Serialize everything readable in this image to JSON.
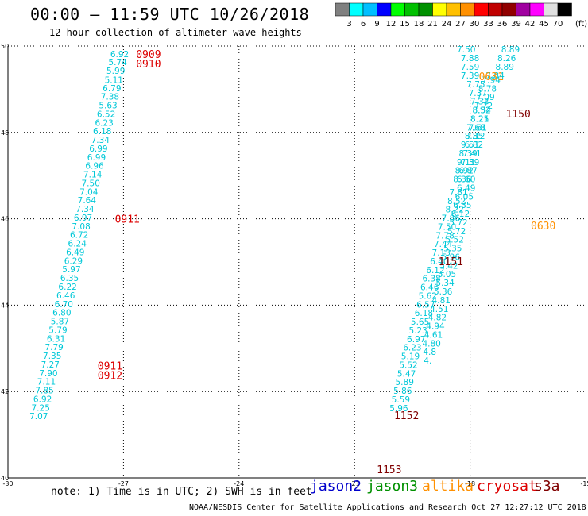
{
  "header": {
    "title": "00:00 – 11:59 UTC 10/26/2018",
    "subtitle": "12 hour collection of altimeter wave heights"
  },
  "colorbar": {
    "colors": [
      "#808080",
      "#00ffff",
      "#00bfff",
      "#0000ff",
      "#00ff00",
      "#00c000",
      "#009000",
      "#ffff00",
      "#ffc000",
      "#ff9000",
      "#ff0000",
      "#c00000",
      "#900000",
      "#a000a0",
      "#ff00ff",
      "#e0e0e0",
      "#000000"
    ],
    "labels": [
      "3",
      "6",
      "9",
      "12",
      "15",
      "18",
      "21",
      "24",
      "27",
      "30",
      "33",
      "36",
      "39",
      "42",
      "45",
      "70",
      "(ft)"
    ]
  },
  "footer": {
    "note": "note: 1) Time is in UTC; 2) SWH is in feet",
    "credit": "NOAA/NESDIS Center for Satellite Applications and Research   Oct 27 12:27:12 UTC 2018",
    "satellites": [
      {
        "name": "jason2",
        "color": "#0000cc"
      },
      {
        "name": "jason3",
        "color": "#009000"
      },
      {
        "name": "altika",
        "color": "#ff9000"
      },
      {
        "name": "cryosat",
        "color": "#dd0000"
      },
      {
        "name": "s3a",
        "color": "#800000"
      }
    ]
  },
  "chart_data": {
    "type": "scatter",
    "xlim": [
      -30,
      -15
    ],
    "ylim": [
      40,
      50
    ],
    "xticks": [
      -30,
      -27,
      -24,
      -21,
      -18,
      -15
    ],
    "yticks": [
      40,
      42,
      44,
      46,
      48,
      50
    ],
    "grid": true,
    "series": [
      {
        "name": "cryosat",
        "color": "#00c8d8",
        "points": [
          [
            -27.1,
            49.82,
            "6.92"
          ],
          [
            -27.15,
            49.63,
            "5.74"
          ],
          [
            -27.2,
            49.43,
            "5.99"
          ],
          [
            -27.25,
            49.22,
            "5.11"
          ],
          [
            -27.3,
            49.03,
            "6.79"
          ],
          [
            -27.35,
            48.83,
            "7.38"
          ],
          [
            -27.4,
            48.63,
            "5.63"
          ],
          [
            -27.45,
            48.43,
            "6.52"
          ],
          [
            -27.5,
            48.23,
            "6.23"
          ],
          [
            -27.55,
            48.03,
            "6.18"
          ],
          [
            -27.6,
            47.83,
            "7.34"
          ],
          [
            -27.65,
            47.63,
            "6.99"
          ],
          [
            -27.7,
            47.43,
            "6.99"
          ],
          [
            -27.75,
            47.23,
            "6.96"
          ],
          [
            -27.8,
            47.03,
            "7.14"
          ],
          [
            -27.85,
            46.83,
            "7.50"
          ],
          [
            -27.9,
            46.63,
            "7.04"
          ],
          [
            -27.95,
            46.43,
            "7.64"
          ],
          [
            -28.0,
            46.23,
            "7.34"
          ],
          [
            -28.05,
            46.03,
            "6.97"
          ],
          [
            -28.1,
            45.83,
            "7.08"
          ],
          [
            -28.15,
            45.63,
            "6.72"
          ],
          [
            -28.2,
            45.43,
            "6.24"
          ],
          [
            -28.25,
            45.23,
            "6.49"
          ],
          [
            -28.3,
            45.03,
            "6.29"
          ],
          [
            -28.35,
            44.83,
            "5.97"
          ],
          [
            -28.4,
            44.63,
            "6.35"
          ],
          [
            -28.45,
            44.43,
            "6.22"
          ],
          [
            -28.5,
            44.23,
            "6.46"
          ],
          [
            -28.55,
            44.03,
            "6.70"
          ],
          [
            -28.6,
            43.83,
            "6.80"
          ],
          [
            -28.65,
            43.63,
            "5.87"
          ],
          [
            -28.7,
            43.43,
            "5.79"
          ],
          [
            -28.75,
            43.23,
            "6.31"
          ],
          [
            -28.8,
            43.03,
            "7.79"
          ],
          [
            -28.85,
            42.83,
            "7.35"
          ],
          [
            -28.9,
            42.63,
            "7.27"
          ],
          [
            -28.95,
            42.43,
            "7.90"
          ],
          [
            -29.0,
            42.23,
            "7.11"
          ],
          [
            -29.05,
            42.03,
            "7.85"
          ],
          [
            -29.1,
            41.83,
            "6.92"
          ],
          [
            -29.15,
            41.63,
            "7.25"
          ],
          [
            -29.2,
            41.43,
            "7.07"
          ]
        ]
      },
      {
        "name": "jason3",
        "color": "#00c8d8",
        "points": [
          [
            -18.1,
            49.93,
            "7.50"
          ],
          [
            -18.0,
            49.72,
            "7.88"
          ],
          [
            -18.0,
            49.52,
            "7.59"
          ],
          [
            -18.0,
            49.32,
            "7.39"
          ],
          [
            -17.85,
            49.12,
            "7.75"
          ],
          [
            -17.8,
            48.92,
            "7.37"
          ],
          [
            -17.75,
            48.72,
            "7.33"
          ],
          [
            -17.7,
            48.52,
            "8.34"
          ],
          [
            -17.75,
            48.32,
            "8.25"
          ],
          [
            -17.85,
            48.12,
            "7.68"
          ],
          [
            -17.9,
            47.92,
            "8.85"
          ],
          [
            -18.0,
            47.72,
            "9.51"
          ],
          [
            -18.05,
            47.52,
            "8.39"
          ],
          [
            -18.1,
            47.32,
            "9.11"
          ],
          [
            -18.15,
            47.12,
            "8.92"
          ],
          [
            -18.2,
            46.92,
            "8.36"
          ],
          [
            -18.3,
            46.62,
            "7.81"
          ],
          [
            -18.35,
            46.42,
            "8.52"
          ],
          [
            -18.4,
            46.22,
            "8.22"
          ],
          [
            -18.5,
            46.02,
            "7.86"
          ],
          [
            -18.6,
            45.82,
            "7.50"
          ],
          [
            -18.65,
            45.62,
            "7.78"
          ],
          [
            -18.7,
            45.42,
            "7.44"
          ],
          [
            -18.75,
            45.22,
            "7.13"
          ],
          [
            -18.8,
            45.02,
            "6.40"
          ],
          [
            -18.9,
            44.82,
            "6.12"
          ],
          [
            -19.0,
            44.62,
            "6.38"
          ],
          [
            -19.05,
            44.42,
            "6.46"
          ],
          [
            -19.1,
            44.22,
            "5.62"
          ],
          [
            -19.15,
            44.02,
            "6.57"
          ],
          [
            -19.2,
            43.82,
            "6.18"
          ],
          [
            -19.3,
            43.62,
            "5.65"
          ],
          [
            -19.35,
            43.42,
            "5.23"
          ],
          [
            -19.4,
            43.22,
            "6.97"
          ],
          [
            -19.5,
            43.02,
            "6.23"
          ],
          [
            -19.55,
            42.82,
            "5.19"
          ],
          [
            -19.6,
            42.62,
            "5.52"
          ],
          [
            -19.65,
            42.42,
            "5.47"
          ],
          [
            -19.7,
            42.22,
            "5.89"
          ],
          [
            -19.75,
            42.02,
            "5.86"
          ],
          [
            -19.8,
            41.82,
            "5.59"
          ],
          [
            -19.85,
            41.62,
            "5.96"
          ]
        ]
      },
      {
        "name": "altika",
        "color": "#00c8d8",
        "points": [
          [
            -16.95,
            49.93,
            "8.89"
          ],
          [
            -17.05,
            49.72,
            "8.26"
          ],
          [
            -17.1,
            49.52,
            "8.89"
          ],
          [
            -17.35,
            49.32,
            "7.84"
          ],
          [
            -17.45,
            49.22,
            "7.94"
          ],
          [
            -17.55,
            49.02,
            "8.78"
          ],
          [
            -17.6,
            48.82,
            "7.09"
          ],
          [
            -17.65,
            48.62,
            "7.72"
          ],
          [
            -17.7,
            48.52,
            "8.52"
          ],
          [
            -17.75,
            48.32,
            "8.21"
          ],
          [
            -17.8,
            48.12,
            "7.61"
          ],
          [
            -17.85,
            47.92,
            "7.12"
          ],
          [
            -17.9,
            47.72,
            "6.82"
          ],
          [
            -17.95,
            47.52,
            "7.41"
          ],
          [
            -18.0,
            47.32,
            "7.39"
          ],
          [
            -18.05,
            47.12,
            "6.87"
          ],
          [
            -18.1,
            46.92,
            "6.60"
          ],
          [
            -18.1,
            46.72,
            "6.49"
          ],
          [
            -18.15,
            46.52,
            "6.05"
          ],
          [
            -18.2,
            46.32,
            "6.35"
          ],
          [
            -18.25,
            46.12,
            "6.12"
          ],
          [
            -18.3,
            45.92,
            "5.72"
          ],
          [
            -18.35,
            45.72,
            "5.72"
          ],
          [
            -18.4,
            45.52,
            "5.52"
          ],
          [
            -18.45,
            45.32,
            "5.35"
          ],
          [
            -18.5,
            45.12,
            "5.96"
          ],
          [
            -18.55,
            44.92,
            "5.42"
          ],
          [
            -18.6,
            44.72,
            "5.05"
          ],
          [
            -18.65,
            44.52,
            "5.34"
          ],
          [
            -18.7,
            44.32,
            "5.36"
          ],
          [
            -18.75,
            44.12,
            "4.81"
          ],
          [
            -18.8,
            43.92,
            "4.51"
          ],
          [
            -18.85,
            43.72,
            "4.82"
          ],
          [
            -18.9,
            43.52,
            "4.94"
          ],
          [
            -18.95,
            43.32,
            "4.61"
          ],
          [
            -19.0,
            43.12,
            "4.80"
          ],
          [
            -19.05,
            42.92,
            "4.8"
          ],
          [
            -19.1,
            42.72,
            "4."
          ]
        ]
      }
    ],
    "time_labels": [
      {
        "text": "0909",
        "x": -26.35,
        "y": 49.82,
        "color": "#dd0000"
      },
      {
        "text": "0910",
        "x": -26.35,
        "y": 49.6,
        "color": "#dd0000"
      },
      {
        "text": "0911",
        "x": -26.9,
        "y": 46.0,
        "color": "#dd0000"
      },
      {
        "text": "0911",
        "x": -27.35,
        "y": 42.6,
        "color": "#dd0000"
      },
      {
        "text": "0912",
        "x": -27.35,
        "y": 42.38,
        "color": "#dd0000"
      },
      {
        "text": "0631",
        "x": -17.45,
        "y": 49.3,
        "color": "#ff9000"
      },
      {
        "text": "1150",
        "x": -16.75,
        "y": 48.44,
        "color": "#800000"
      },
      {
        "text": "0630",
        "x": -16.1,
        "y": 45.85,
        "color": "#ff9000"
      },
      {
        "text": "1151",
        "x": -18.5,
        "y": 45.02,
        "color": "#800000"
      },
      {
        "text": "1152",
        "x": -19.65,
        "y": 41.45,
        "color": "#800000"
      },
      {
        "text": "1153",
        "x": -20.1,
        "y": 40.2,
        "color": "#800000"
      }
    ]
  }
}
